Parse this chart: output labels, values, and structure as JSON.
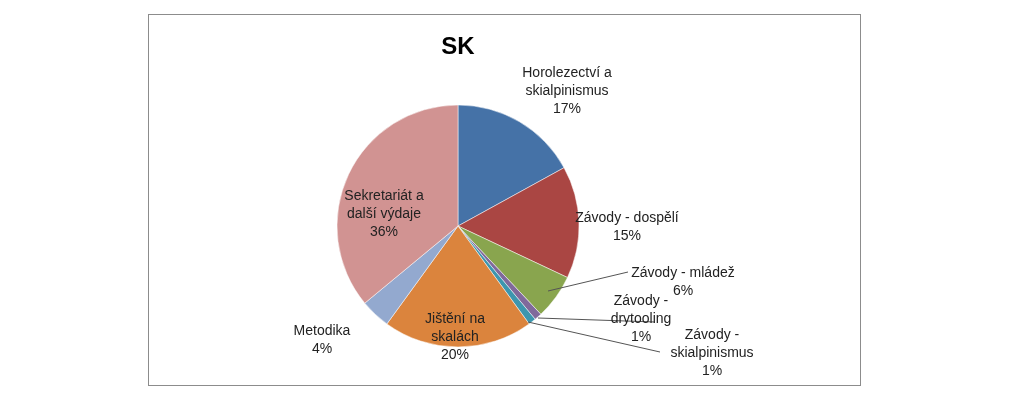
{
  "chart_data": {
    "type": "pie",
    "title": "SK",
    "categories": [
      "Horolezectví a skialpinismus",
      "Závody - dospělí",
      "Závody - mládež",
      "Závody - drytooling",
      "Závody - skialpinismus",
      "Jištění na skalách",
      "Metodika",
      "Sekretariát a další výdaje"
    ],
    "values": [
      17,
      15,
      6,
      1,
      1,
      20,
      4,
      36
    ],
    "colors": [
      "#4572a7",
      "#aa4643",
      "#89a54e",
      "#80699b",
      "#3d96ae",
      "#db843d",
      "#93a9cf",
      "#d19392"
    ],
    "value_labels": [
      "17%",
      "15%",
      "6%",
      "1%",
      "1%",
      "20%",
      "4%",
      "36%"
    ]
  }
}
